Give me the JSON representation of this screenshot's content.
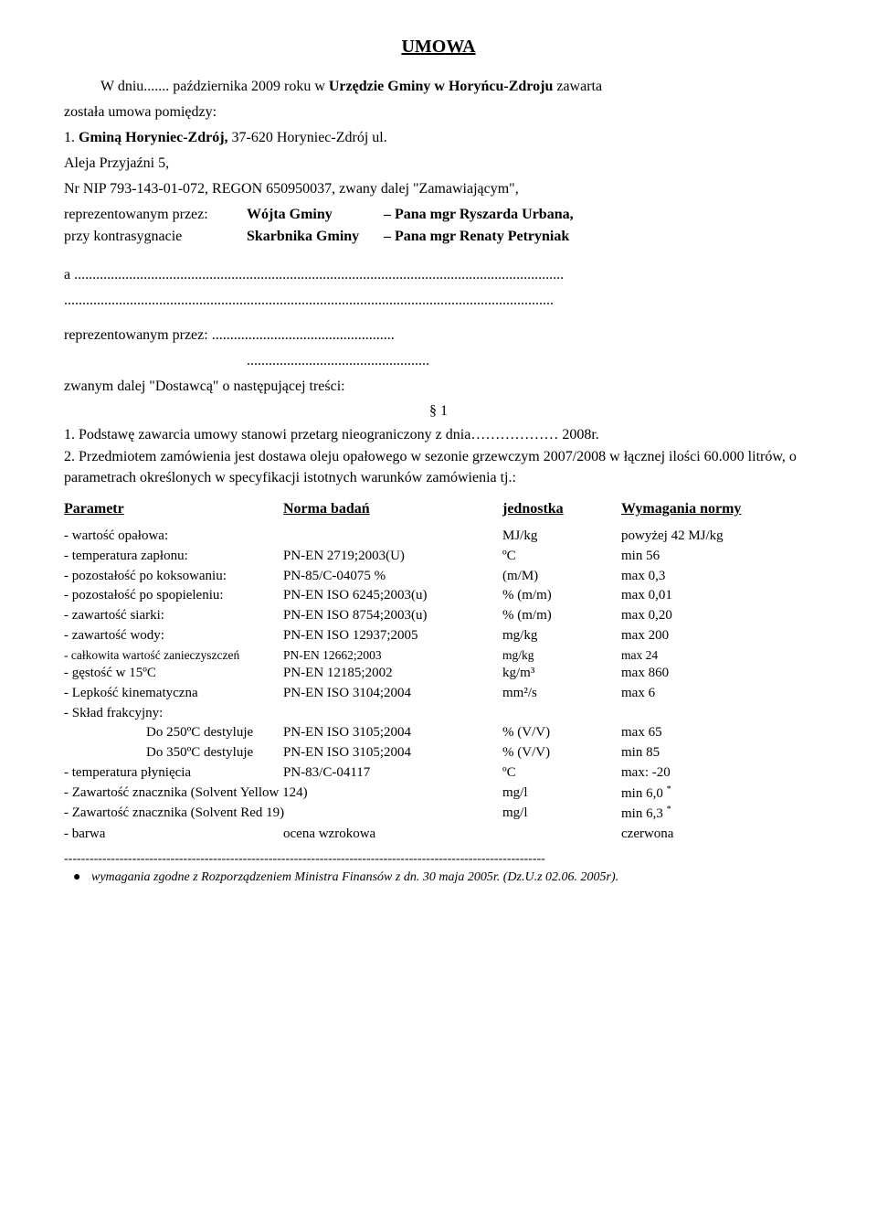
{
  "title": "UMOWA",
  "intro": {
    "line1_a": "W dniu....... października 2009 roku w ",
    "line1_b": "Urzędzie Gminy w Horyńcu-Zdroju",
    "line1_c": "  zawarta",
    "line2": "została umowa pomiędzy:",
    "item1_a": "1. ",
    "item1_b": "Gminą Horyniec-Zdrój, ",
    "item1_c": "37-620 Horyniec-Zdrój ul.",
    "line3": "Aleja Przyjaźni 5,",
    "line4": "Nr NIP 793-143-01-072,  REGON 650950037, zwany dalej \"Zamawiającym\",",
    "rep_label": "reprezentowanym przez:",
    "rep_role1": "Wójta Gminy",
    "rep_name1": "– Pana mgr Ryszarda Urbana,",
    "kontra_label": "przy kontrasygnacie",
    "rep_role2": "Skarbnika Gminy",
    "rep_name2": "– Pana mgr Renaty Petryniak"
  },
  "a_line": "a ......................................................................................................................................",
  "a_line2": "......................................................................................................................................",
  "rep2": "reprezentowanym przez:   ..................................................",
  "rep2b": "..................................................",
  "zwanym": "zwanym dalej \"Dostawcą\"  o następującej treści:",
  "section1": "§ 1",
  "p1": "1. Podstawę zawarcia umowy stanowi przetarg nieograniczony z dnia……………… 2008r.",
  "p2": "2. Przedmiotem zamówienia jest dostawa oleju opałowego w sezonie grzewczym 2007/2008 w łącznej ilości 60.000 litrów, o parametrach określonych  w specyfikacji istotnych warunków zamówienia tj.:",
  "table_header": {
    "c1": "Parametr",
    "c2": "Norma badań",
    "c3": "jednostka",
    "c4": "Wymagania normy"
  },
  "rows": [
    {
      "p": "- wartość opałowa:",
      "n": "",
      "u": "MJ/kg",
      "w": "powyżej 42 MJ/kg"
    },
    {
      "p": "- temperatura zapłonu:",
      "n": "PN-EN 2719;2003(U)",
      "u": "ºC",
      "w": "min 56"
    },
    {
      "p": "- pozostałość po koksowaniu:",
      "n": "PN-85/C-04075 %",
      "u": "(m/M)",
      "w": "max 0,3"
    },
    {
      "p": "- pozostałość po spopieleniu:",
      "n": "PN-EN ISO 6245;2003(u)",
      "u": "% (m/m)",
      "w": "max 0,01"
    },
    {
      "p": "- zawartość siarki:",
      "n": "PN-EN ISO 8754;2003(u)",
      "u": "% (m/m)",
      "w": "max 0,20"
    },
    {
      "p": "- zawartość wody:",
      "n": "PN-EN ISO 12937;2005",
      "u": "mg/kg",
      "w": "max 200"
    },
    {
      "p": "- całkowita wartość zanieczyszczeń",
      "n": "PN-EN 12662;2003",
      "u": "mg/kg",
      "w": "max 24",
      "small": true
    },
    {
      "p": "- gęstość w 15ºC",
      "n": "PN-EN 12185;2002",
      "u": "kg/m³",
      "w": "max 860"
    },
    {
      "p": "- Lepkość kinematyczna",
      "n": "PN-EN ISO 3104;2004",
      "u": "mm²/s",
      "w": "max 6"
    },
    {
      "p": "- Skład frakcyjny:",
      "n": "",
      "u": "",
      "w": ""
    },
    {
      "p": "Do 250ºC destyluje",
      "n": "PN-EN ISO 3105;2004",
      "u": "% (V/V)",
      "w": "max 65",
      "sub": true
    },
    {
      "p": "Do 350ºC destyluje",
      "n": "PN-EN ISO 3105;2004",
      "u": "% (V/V)",
      "w": "min 85",
      "sub": true
    },
    {
      "p": "- temperatura płynięcia",
      "n": "PN-83/C-04117",
      "u": "ºC",
      "w": "max: -20"
    },
    {
      "p": "- Zawartość znacznika   (Solvent Yellow 124)",
      "n": "",
      "u": "mg/l",
      "w": "min 6,0 *",
      "wide": true
    },
    {
      "p": "- Zawartość znacznika   (Solvent Red 19)",
      "n": "",
      "u": "mg/l",
      "w": "min 6,3 *",
      "wide": true
    },
    {
      "p": "- barwa",
      "n": "ocena wzrokowa",
      "u": "",
      "w": "czerwona"
    }
  ],
  "dashline": "-----------------------------------------------------------------------------------------------------------------",
  "footnote": "wymagania zgodne z Rozporządzeniem Ministra Finansów z dn. 30 maja 2005r. (Dz.U.z 02.06. 2005r)."
}
